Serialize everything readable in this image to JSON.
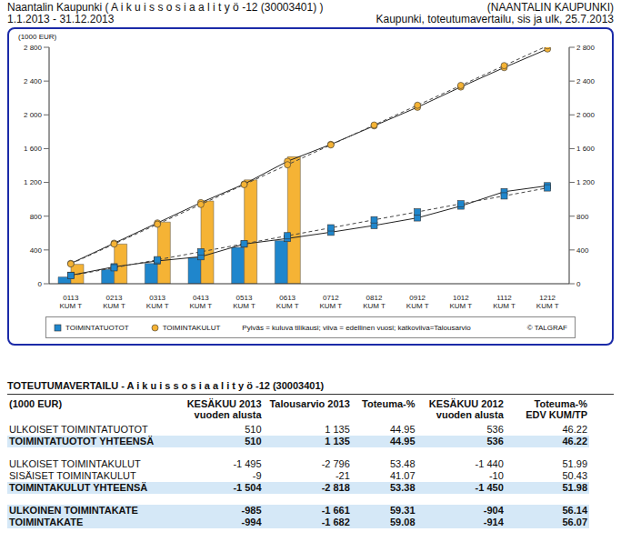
{
  "header": {
    "title": "Naantalin Kaupunki ( A i k u i s s o s i a a l i t y ö -12 (30003401) )",
    "organization": "(NAANTALIN KAUPUNKI)",
    "period": "1.1.2013 - 31.12.2013",
    "report": "Kaupunki, toteutumavertailu, sis ja ulk, 25.7.2013"
  },
  "chart_data": {
    "type": "bar",
    "y_label": "(1000 EUR)",
    "categories": [
      "0113\nKUM T",
      "0213\nKUM T",
      "0313\nKUM T",
      "0413\nKUM T",
      "0513\nKUM T",
      "0613\nKUM T",
      "0712\nKUM T",
      "0812\nKUM T",
      "0912\nKUM T",
      "1012\nKUM T",
      "1112\nKUM T",
      "1212\nKUM T"
    ],
    "series": [
      {
        "name": "TOIMINTATUOTOT",
        "color": "#1f86cc",
        "marker": "square",
        "values": [
          80,
          170,
          240,
          310,
          430,
          510,
          null,
          null,
          null,
          null,
          null,
          null
        ],
        "previous_year": [
          100,
          200,
          270,
          320,
          470,
          536,
          610,
          690,
          780,
          920,
          1090,
          1160
        ],
        "budget": [
          95,
          189,
          284,
          378,
          473,
          568,
          662,
          757,
          851,
          946,
          1040,
          1135
        ]
      },
      {
        "name": "TOIMINTAKULUT",
        "color": "#f5b335",
        "marker": "circle",
        "values": [
          230,
          470,
          730,
          980,
          1230,
          1504,
          null,
          null,
          null,
          null,
          null,
          null
        ],
        "previous_year": [
          240,
          480,
          720,
          960,
          1180,
          1450,
          1650,
          1870,
          2090,
          2330,
          2560,
          2780
        ],
        "budget": [
          235,
          470,
          705,
          939,
          1174,
          1409,
          1644,
          1879,
          2114,
          2348,
          2583,
          2818
        ]
      }
    ],
    "ylim": [
      0,
      2800
    ],
    "yticks": [
      0,
      400,
      800,
      {
        "value": 1200,
        "label": "1 200"
      },
      {
        "value": 1600,
        "label": "1 600"
      },
      {
        "value": 2000,
        "label": "2 000"
      },
      {
        "value": 2400,
        "label": "2 400"
      },
      {
        "value": 2800,
        "label": "2 800"
      }
    ],
    "y2lim": [
      0,
      2800
    ],
    "y2ticks": [
      0,
      400,
      800,
      {
        "value": 1200,
        "label": "1 200"
      },
      {
        "value": 1600,
        "label": "1 600"
      },
      {
        "value": 2000,
        "label": "2 000"
      },
      {
        "value": 2400,
        "label": "2 400"
      },
      {
        "value": 2800,
        "label": "2 800"
      }
    ],
    "grid": false,
    "legend": "bottom",
    "legend_note": "Pylväs = kuluva tilikausi; viiva = edellinen vuosi; katkoviiva=Talousarvio",
    "credit": "© TALGRAF"
  },
  "table": {
    "title": "TOTEUTUMAVERTAILU - A i k u i s s o s i a a l i t y ö -12 (30003401)",
    "columns": [
      "(1000 EUR)",
      "KESÄKUU 2013\nvuoden alusta",
      "Talousarvio 2013",
      "Toteuma-%",
      "KESÄKUU 2012\nvuoden alusta",
      "Toteuma-%\nEDV KUM/TP"
    ],
    "groups": [
      [
        {
          "cells": [
            "ULKOISET TOIMINTATUOTOT",
            "510",
            "1 135",
            "44.95",
            "536",
            "46.22"
          ],
          "highlight": false
        },
        {
          "cells": [
            "TOIMINTATUOTOT YHTEENSÄ",
            "510",
            "1 135",
            "44.95",
            "536",
            "46.22"
          ],
          "highlight": true
        }
      ],
      [
        {
          "cells": [
            "ULKOISET TOIMINTAKULUT",
            "-1 495",
            "-2 796",
            "53.48",
            "-1 440",
            "51.99"
          ],
          "highlight": false
        },
        {
          "cells": [
            "SISÄISET TOIMINTAKULUT",
            "-9",
            "-21",
            "41.07",
            "-10",
            "50.43"
          ],
          "highlight": false
        },
        {
          "cells": [
            "TOIMINTAKULUT YHTEENSÄ",
            "-1 504",
            "-2 818",
            "53.38",
            "-1 450",
            "51.98"
          ],
          "highlight": true
        }
      ],
      [
        {
          "cells": [
            "ULKOINEN TOIMINTAKATE",
            "-985",
            "-1 661",
            "59.31",
            "-904",
            "56.14"
          ],
          "highlight": true
        },
        {
          "cells": [
            "TOIMINTAKATE",
            "-994",
            "-1 682",
            "59.08",
            "-914",
            "56.07"
          ],
          "highlight": true
        }
      ]
    ]
  }
}
